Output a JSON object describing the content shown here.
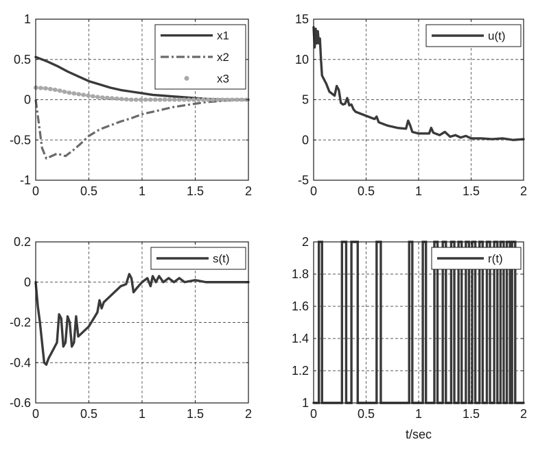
{
  "chart_data": [
    {
      "type": "line",
      "panel": "top-left",
      "xlim": [
        0,
        2
      ],
      "ylim": [
        -1,
        1
      ],
      "xticks": [
        "0",
        "0.5",
        "1",
        "1.5",
        "2"
      ],
      "yticks": [
        "-1",
        "-0.5",
        "0",
        "0.5",
        "1"
      ],
      "xtick_values": [
        0,
        0.5,
        1,
        1.5,
        2
      ],
      "ytick_values": [
        -1,
        -0.5,
        0,
        0.5,
        1
      ],
      "grid": true,
      "legend": "top-right",
      "xlabel": "",
      "series": [
        {
          "name": "x1",
          "style": "solid",
          "color": "#3a3a3a",
          "x": [
            0,
            0.1,
            0.2,
            0.3,
            0.4,
            0.5,
            0.6,
            0.7,
            0.8,
            0.9,
            1.0,
            1.1,
            1.2,
            1.3,
            1.4,
            1.5,
            1.6,
            1.8,
            2.0
          ],
          "y": [
            0.53,
            0.48,
            0.42,
            0.35,
            0.29,
            0.23,
            0.19,
            0.15,
            0.12,
            0.1,
            0.08,
            0.06,
            0.05,
            0.04,
            0.03,
            0.02,
            0.01,
            0.0,
            0.0
          ]
        },
        {
          "name": "x2",
          "style": "dashdot",
          "color": "#6a6a6a",
          "x": [
            0,
            0.03,
            0.06,
            0.1,
            0.15,
            0.2,
            0.28,
            0.35,
            0.42,
            0.5,
            0.6,
            0.7,
            0.8,
            0.9,
            1.0,
            1.1,
            1.2,
            1.3,
            1.4,
            1.5,
            1.6,
            1.7,
            1.8,
            2.0
          ],
          "y": [
            0.0,
            -0.3,
            -0.6,
            -0.73,
            -0.7,
            -0.67,
            -0.7,
            -0.63,
            -0.55,
            -0.45,
            -0.37,
            -0.32,
            -0.27,
            -0.23,
            -0.18,
            -0.15,
            -0.12,
            -0.09,
            -0.07,
            -0.05,
            -0.03,
            -0.02,
            -0.01,
            0.0
          ]
        },
        {
          "name": "x3",
          "style": "dotted-thick",
          "color": "#a8a8a8",
          "x": [
            0,
            0.1,
            0.2,
            0.3,
            0.4,
            0.5,
            0.6,
            0.7,
            0.8,
            0.9,
            1.0,
            1.2,
            1.4,
            1.6,
            1.8,
            2.0
          ],
          "y": [
            0.15,
            0.14,
            0.12,
            0.09,
            0.07,
            0.05,
            0.03,
            0.02,
            0.01,
            0.0,
            0.0,
            0.0,
            0.0,
            0.0,
            0.0,
            0.0
          ]
        }
      ]
    },
    {
      "type": "line",
      "panel": "top-right",
      "xlim": [
        0,
        2
      ],
      "ylim": [
        -5,
        15
      ],
      "xticks": [
        "0",
        "0.5",
        "1",
        "1.5",
        "2"
      ],
      "yticks": [
        "-5",
        "0",
        "5",
        "10",
        "15"
      ],
      "xtick_values": [
        0,
        0.5,
        1,
        1.5,
        2
      ],
      "ytick_values": [
        -5,
        0,
        5,
        10,
        15
      ],
      "grid": true,
      "legend": "top-right",
      "xlabel": "",
      "series": [
        {
          "name": "u(t)",
          "style": "solid",
          "color": "#3a3a3a",
          "x": [
            0,
            0.01,
            0.02,
            0.03,
            0.04,
            0.05,
            0.06,
            0.07,
            0.08,
            0.1,
            0.12,
            0.15,
            0.2,
            0.22,
            0.24,
            0.26,
            0.28,
            0.3,
            0.32,
            0.34,
            0.36,
            0.38,
            0.4,
            0.5,
            0.58,
            0.6,
            0.62,
            0.7,
            0.8,
            0.88,
            0.9,
            0.92,
            0.94,
            1.0,
            1.05,
            1.1,
            1.12,
            1.14,
            1.2,
            1.25,
            1.3,
            1.35,
            1.4,
            1.45,
            1.5,
            1.55,
            1.6,
            1.7,
            1.8,
            1.9,
            2.0
          ],
          "y": [
            14,
            11.5,
            13.8,
            12,
            13.5,
            12,
            12.6,
            10,
            8,
            7.5,
            7,
            6,
            5.5,
            6.7,
            6.2,
            4.6,
            4.4,
            4.5,
            5.2,
            4.3,
            4.4,
            3.8,
            3.5,
            3.0,
            2.6,
            2.9,
            2.2,
            1.8,
            1.5,
            1.4,
            2.4,
            1.8,
            1.0,
            0.8,
            0.8,
            0.8,
            1.5,
            0.9,
            0.6,
            1.0,
            0.4,
            0.6,
            0.3,
            0.5,
            0.2,
            0.2,
            0.2,
            0.1,
            0.2,
            0.0,
            0.1
          ]
        }
      ]
    },
    {
      "type": "line",
      "panel": "bottom-left",
      "xlim": [
        0,
        2
      ],
      "ylim": [
        -0.6,
        0.2
      ],
      "xticks": [
        "0",
        "0.5",
        "1",
        "1.5",
        "2"
      ],
      "yticks": [
        "-0.6",
        "-0.4",
        "-0.2",
        "0",
        "0.2"
      ],
      "xtick_values": [
        0,
        0.5,
        1,
        1.5,
        2
      ],
      "ytick_values": [
        -0.6,
        -0.4,
        -0.2,
        0,
        0.2
      ],
      "grid": true,
      "legend": "top-right",
      "xlabel": "",
      "series": [
        {
          "name": "s(t)",
          "style": "solid",
          "color": "#3a3a3a",
          "x": [
            0,
            0.02,
            0.04,
            0.06,
            0.08,
            0.1,
            0.12,
            0.15,
            0.2,
            0.22,
            0.24,
            0.26,
            0.28,
            0.3,
            0.32,
            0.34,
            0.36,
            0.38,
            0.4,
            0.5,
            0.58,
            0.6,
            0.62,
            0.64,
            0.7,
            0.8,
            0.85,
            0.88,
            0.9,
            0.92,
            0.95,
            1.0,
            1.05,
            1.08,
            1.1,
            1.13,
            1.16,
            1.2,
            1.25,
            1.3,
            1.35,
            1.4,
            1.5,
            1.6,
            1.7,
            1.8,
            2.0
          ],
          "y": [
            0.0,
            -0.12,
            -0.2,
            -0.3,
            -0.4,
            -0.41,
            -0.38,
            -0.35,
            -0.3,
            -0.16,
            -0.18,
            -0.32,
            -0.3,
            -0.17,
            -0.2,
            -0.32,
            -0.3,
            -0.17,
            -0.27,
            -0.22,
            -0.15,
            -0.09,
            -0.13,
            -0.1,
            -0.07,
            -0.02,
            -0.01,
            0.04,
            0.02,
            -0.05,
            -0.03,
            0.0,
            0.02,
            -0.02,
            0.03,
            0.0,
            0.03,
            0.0,
            0.02,
            0.0,
            0.02,
            0.0,
            0.01,
            0.0,
            0.0,
            0.0,
            0.0
          ]
        }
      ]
    },
    {
      "type": "line",
      "panel": "bottom-right",
      "xlim": [
        0,
        2
      ],
      "ylim": [
        1,
        2
      ],
      "xticks": [
        "0",
        "0.5",
        "1",
        "1.5",
        "2"
      ],
      "yticks": [
        "1",
        "1.2",
        "1.4",
        "1.6",
        "1.8",
        "2"
      ],
      "xtick_values": [
        0,
        0.5,
        1,
        1.5,
        2
      ],
      "ytick_values": [
        1,
        1.2,
        1.4,
        1.6,
        1.8,
        2
      ],
      "grid": true,
      "legend": "top-right",
      "xlabel": "t/sec",
      "series": [
        {
          "name": "r(t)",
          "style": "step",
          "color": "#3a3a3a",
          "switch_times": [
            0.05,
            0.08,
            0.27,
            0.31,
            0.36,
            0.42,
            0.6,
            0.64,
            0.91,
            0.94,
            1.04,
            1.07,
            1.15,
            1.18,
            1.23,
            1.26,
            1.31,
            1.34,
            1.38,
            1.41,
            1.45,
            1.48,
            1.51,
            1.54,
            1.58,
            1.61,
            1.65,
            1.68,
            1.72,
            1.75,
            1.78,
            1.81,
            1.84,
            1.87,
            1.89,
            1.92
          ],
          "initial": 1,
          "values": [
            1,
            2
          ]
        }
      ]
    }
  ]
}
